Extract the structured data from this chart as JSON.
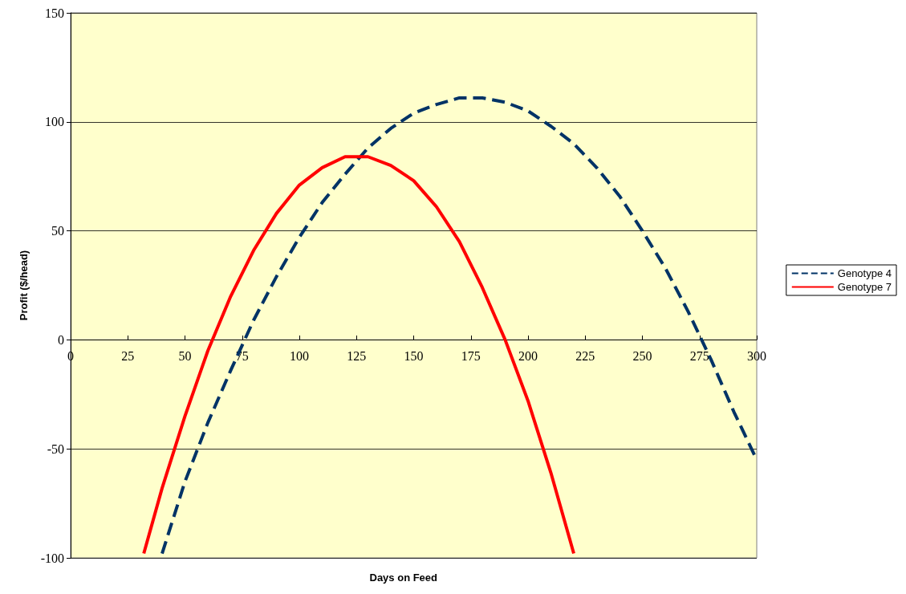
{
  "chart_data": {
    "type": "line",
    "xlabel": "Days on Feed",
    "ylabel": "Profit ($/head)",
    "xlim": [
      0,
      300
    ],
    "xticks": [
      0,
      25,
      50,
      75,
      100,
      125,
      150,
      175,
      200,
      225,
      250,
      275,
      300
    ],
    "ylim": [
      -100,
      150
    ],
    "yticks": [
      -100,
      -50,
      0,
      50,
      100,
      150
    ],
    "grid": "y",
    "legend": "right",
    "marker": "none",
    "series": [
      {
        "name": "Genotype 4",
        "color": "#003366",
        "line_style": "dashed",
        "x": [
          40,
          50,
          60,
          70,
          80,
          90,
          100,
          110,
          120,
          130,
          140,
          150,
          160,
          170,
          180,
          190,
          200,
          210,
          220,
          230,
          240,
          250,
          260,
          270,
          280,
          290,
          300
        ],
        "values": [
          -98,
          -65,
          -38,
          -14,
          9,
          29,
          47,
          63,
          76,
          88,
          97,
          104,
          108,
          111,
          111,
          109,
          105,
          98,
          90,
          79,
          66,
          50,
          33,
          13,
          -9,
          -33,
          -55
        ]
      },
      {
        "name": "Genotype 7",
        "color": "#ff0000",
        "line_style": "solid",
        "x": [
          32,
          40,
          50,
          60,
          70,
          80,
          90,
          100,
          110,
          120,
          130,
          140,
          150,
          160,
          170,
          180,
          190,
          200,
          210,
          220
        ],
        "values": [
          -98,
          -68,
          -35,
          -5,
          20,
          41,
          58,
          71,
          79,
          84,
          84,
          80,
          73,
          61,
          45,
          24,
          0,
          -28,
          -61,
          -98
        ]
      }
    ]
  }
}
